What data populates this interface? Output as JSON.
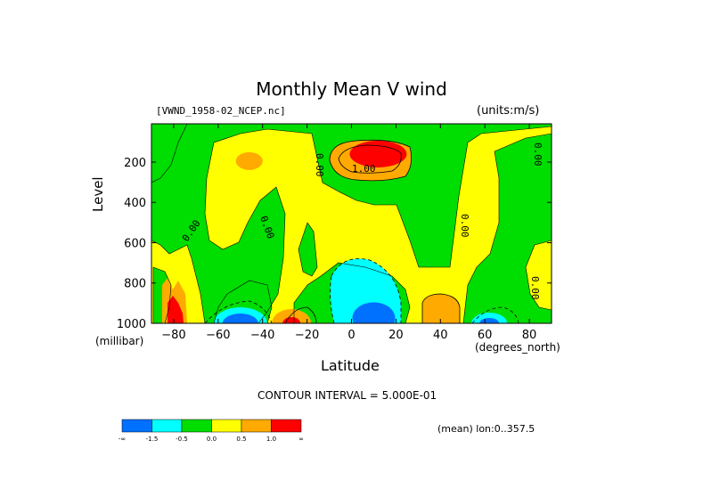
{
  "header": {
    "title": "Monthly Mean V wind",
    "dataset": "[VWND_1958-02_NCEP.nc]",
    "units": "(units:m/s)"
  },
  "footer": {
    "contour_interval": "CONTOUR INTERVAL = 5.000E-01",
    "mean_note": "(mean) lon:0..357.5"
  },
  "colorbar": {
    "colors": [
      "#0070ff",
      "#00ffff",
      "#00dd00",
      "#ffff00",
      "#ffaa00",
      "#ff0000"
    ],
    "labels": [
      "-∞",
      "-1.5",
      "-0.5",
      "0.0",
      "0.5",
      "1.0",
      "∞"
    ]
  },
  "chart_data": {
    "type": "contour",
    "title": "Monthly Mean V wind",
    "xlabel": "Latitude",
    "xunits": "(degrees_north)",
    "ylabel": "Level",
    "yunits": "(millibar)",
    "xlim": [
      -90,
      90
    ],
    "ylim": [
      1000,
      10
    ],
    "xticks": [
      -80,
      -60,
      -40,
      -20,
      0,
      20,
      40,
      60,
      80
    ],
    "yticks": [
      200,
      400,
      600,
      800,
      1000
    ],
    "xtick_labels": [
      "−80",
      "−60",
      "−40",
      "−20",
      "0",
      "20",
      "40",
      "60",
      "80"
    ],
    "ytick_labels": [
      "200",
      "400",
      "600",
      "800",
      "1000"
    ],
    "contour_labels": [
      "0.00",
      "0.00",
      "0.00",
      "0.00",
      "0.00",
      "1.00",
      "0.00"
    ],
    "fill_levels": [
      -1.5,
      -0.5,
      0.0,
      0.5,
      1.0
    ],
    "features": [
      {
        "kind": "max",
        "lat": 10,
        "level": 150,
        "value": 2.5,
        "color": "red"
      },
      {
        "kind": "max",
        "lat": -88,
        "level": 950,
        "value": 1.5,
        "color": "red"
      },
      {
        "kind": "max",
        "lat": -45,
        "level": 200,
        "value": 0.7,
        "color": "orange"
      },
      {
        "kind": "max",
        "lat": -27,
        "level": 980,
        "value": 1.0,
        "color": "orange"
      },
      {
        "kind": "max",
        "lat": 40,
        "level": 960,
        "value": 0.7,
        "color": "orange"
      },
      {
        "kind": "min",
        "lat": 10,
        "level": 960,
        "value": -2.0,
        "color": "blue"
      },
      {
        "kind": "min",
        "lat": -50,
        "level": 980,
        "value": -1.6,
        "color": "blue"
      },
      {
        "kind": "min",
        "lat": 62,
        "level": 990,
        "value": -1.5,
        "color": "blue"
      },
      {
        "kind": "neg",
        "lat": 5,
        "level": 900,
        "value": -1.0,
        "color": "cyan"
      }
    ]
  }
}
